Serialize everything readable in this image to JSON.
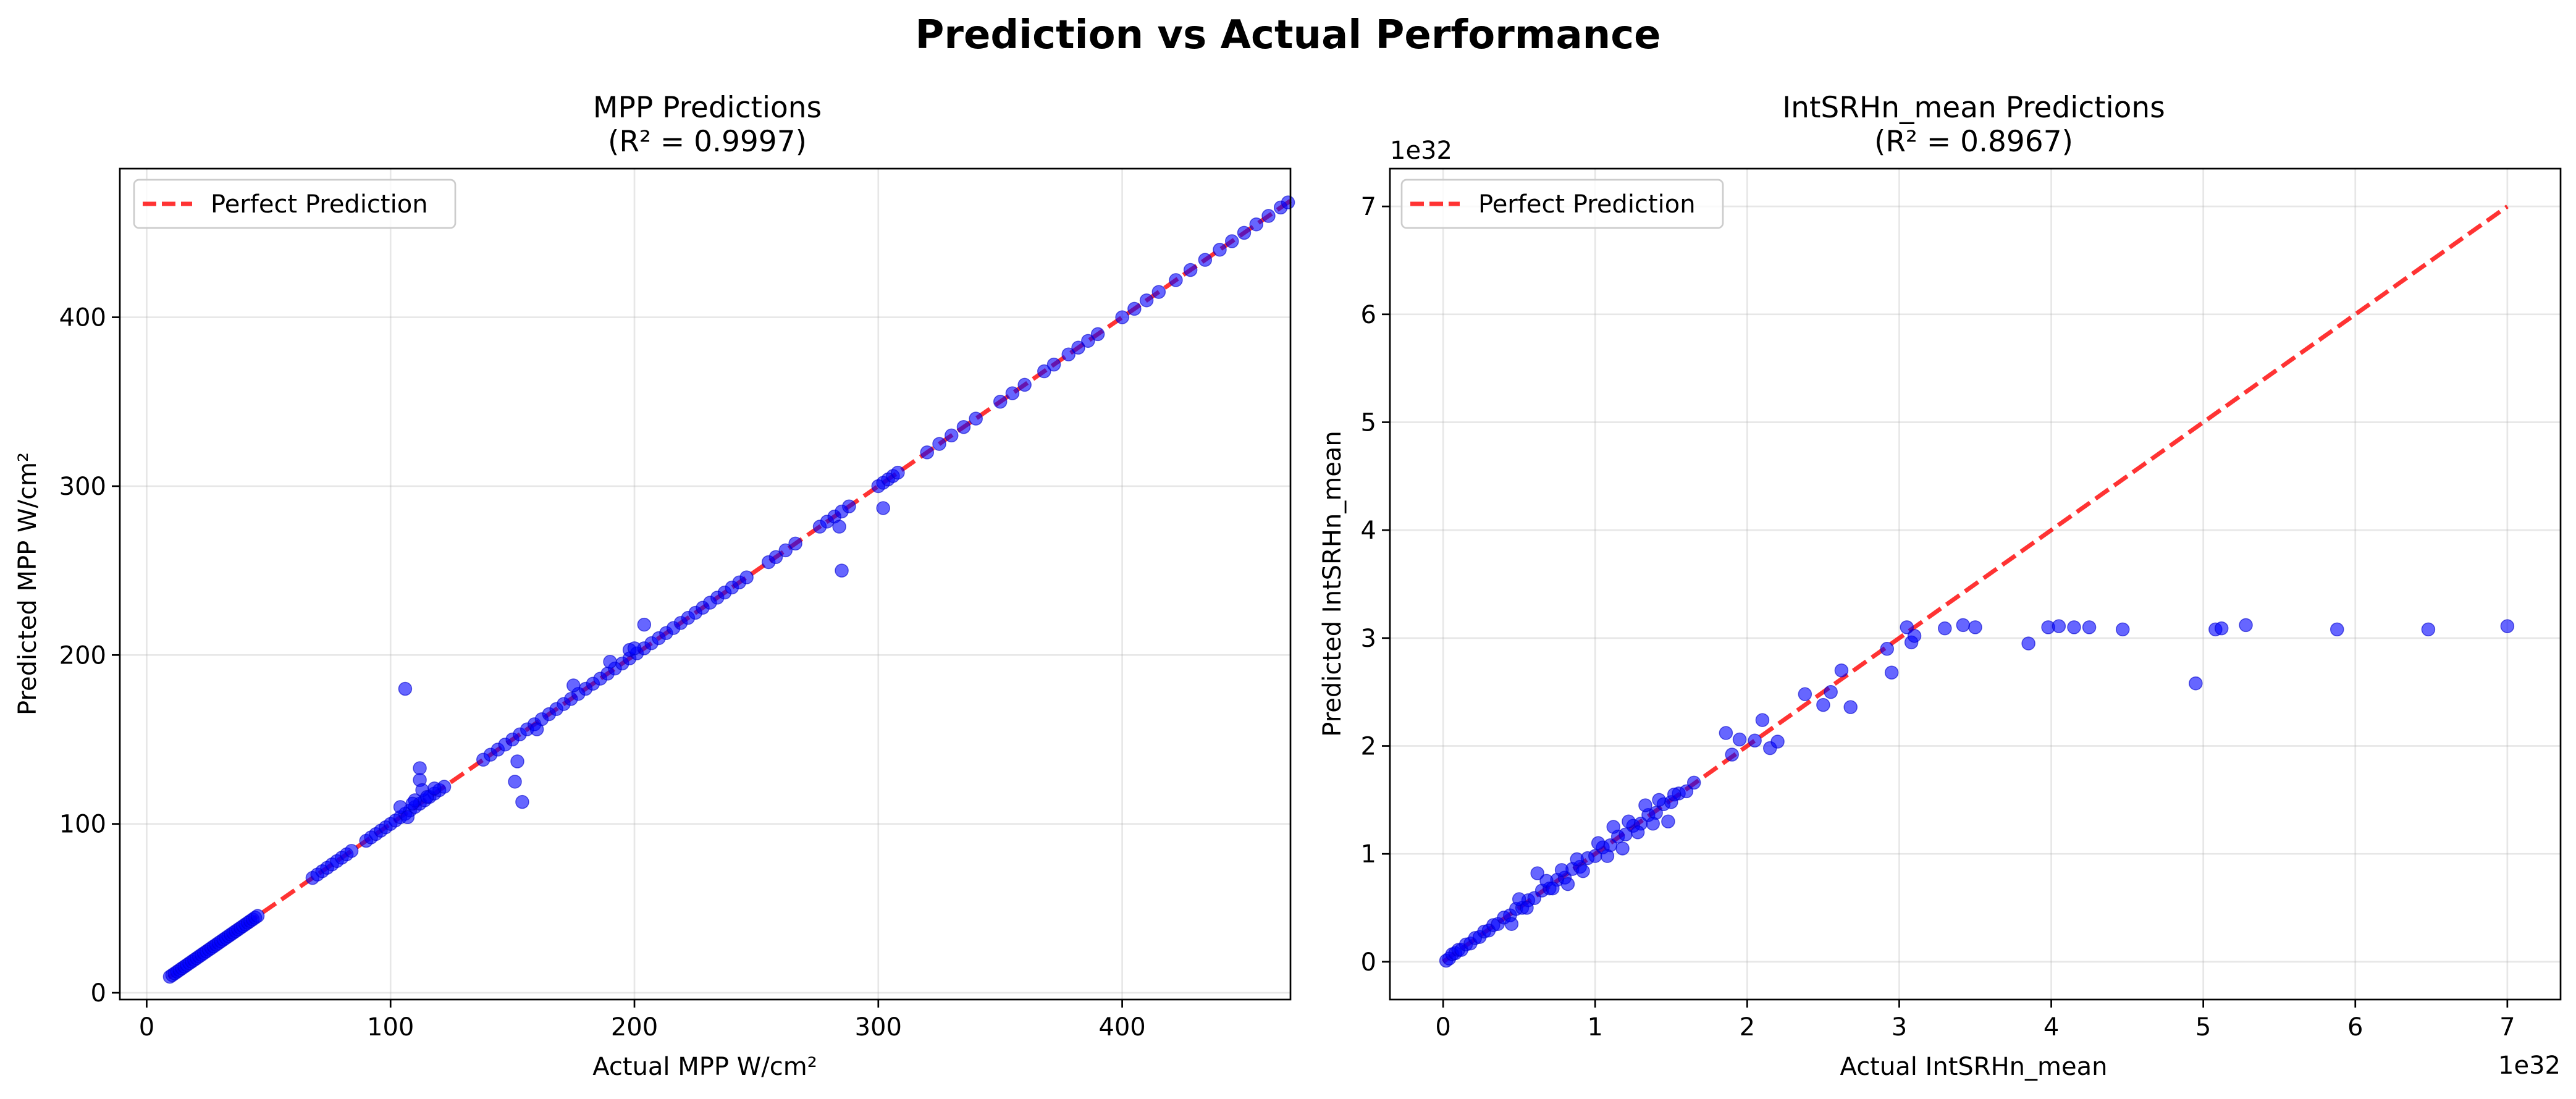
{
  "figure": {
    "title": "Prediction vs Actual Performance"
  },
  "colors": {
    "point_fill": "#0000ff",
    "point_edge": "#0000cc",
    "perfect_line": "#ff0000",
    "grid": "#b0b0b0",
    "legend_edge": "#cccccc"
  },
  "chart_data": [
    {
      "type": "scatter",
      "title": "MPP Predictions\n(R² = 0.9997)",
      "xlabel": "Actual MPP W/cm²",
      "ylabel": "Predicted MPP W/cm²",
      "xlim": [
        -11,
        469
      ],
      "ylim": [
        -4,
        488
      ],
      "xticks": [
        0,
        100,
        200,
        300,
        400
      ],
      "xtick_labels": [
        "0",
        "100",
        "200",
        "300",
        "400"
      ],
      "yticks": [
        0,
        100,
        200,
        300,
        400
      ],
      "ytick_labels": [
        "0",
        "100",
        "200",
        "300",
        "400"
      ],
      "offset_x": "",
      "offset_y": "",
      "grid": true,
      "legend": {
        "position": "top-left",
        "entries": [
          "Perfect Prediction"
        ]
      },
      "reference_line": {
        "x": [
          9,
          469
        ],
        "y": [
          9,
          469
        ]
      },
      "series": [
        {
          "name": "",
          "x": [
            9.5,
            10.5,
            11.5,
            12.5,
            13.5,
            14.5,
            15.5,
            16.5,
            17.5,
            18.5,
            19.5,
            20.5,
            21.5,
            22.5,
            23.5,
            24.5,
            25.5,
            26.5,
            27.5,
            28.5,
            29.5,
            30.5,
            31.5,
            32.5,
            33.5,
            34.5,
            35.5,
            36.5,
            37.5,
            38.5,
            39.5,
            40.5,
            41.5,
            42.5,
            43.5,
            44.5,
            45.5,
            68,
            70,
            72,
            74,
            76,
            78,
            80,
            82,
            84,
            90,
            92,
            94,
            96,
            98,
            100,
            102,
            104,
            106,
            108,
            110,
            112,
            114,
            116,
            118,
            120,
            122,
            138,
            141,
            144,
            147,
            150,
            153,
            156,
            159,
            162,
            165,
            168,
            171,
            174,
            177,
            180,
            183,
            186,
            189,
            192,
            195,
            198,
            201,
            204,
            207,
            210,
            213,
            216,
            219,
            222,
            225,
            228,
            231,
            234,
            237,
            240,
            243,
            246,
            255,
            258,
            262,
            266,
            276,
            279,
            282,
            285,
            288,
            300,
            302,
            304,
            306,
            308,
            320,
            325,
            330,
            335,
            340,
            350,
            355,
            360,
            368,
            372,
            378,
            382,
            386,
            390,
            400,
            405,
            410,
            415,
            422,
            428,
            434,
            440,
            445,
            450,
            455,
            460,
            465,
            468,
            106,
            112,
            112,
            113,
            110,
            104,
            107,
            109,
            115,
            118,
            152,
            151,
            154,
            285,
            284,
            302,
            190,
            198,
            200,
            204,
            175,
            160
          ],
          "y": [
            9.5,
            10.5,
            11.5,
            12.5,
            13.5,
            14.5,
            15.5,
            16.5,
            17.5,
            18.5,
            19.5,
            20.5,
            21.5,
            22.5,
            23.5,
            24.5,
            25.5,
            26.5,
            27.5,
            28.5,
            29.5,
            30.5,
            31.5,
            32.5,
            33.5,
            34.5,
            35.5,
            36.5,
            37.5,
            38.5,
            39.5,
            40.5,
            41.5,
            42.5,
            43.5,
            44.5,
            45.5,
            68,
            70,
            72,
            74,
            76,
            78,
            80,
            82,
            84,
            90,
            92,
            94,
            96,
            98,
            100,
            102,
            104,
            106,
            108,
            110,
            112,
            114,
            116,
            118,
            120,
            122,
            138,
            141,
            144,
            147,
            150,
            153,
            156,
            159,
            162,
            165,
            168,
            171,
            174,
            177,
            180,
            183,
            186,
            189,
            192,
            195,
            198,
            201,
            204,
            207,
            210,
            213,
            216,
            219,
            222,
            225,
            228,
            231,
            234,
            237,
            240,
            243,
            246,
            255,
            258,
            262,
            266,
            276,
            279,
            282,
            285,
            288,
            300,
            302,
            304,
            306,
            308,
            320,
            325,
            330,
            335,
            340,
            350,
            355,
            360,
            368,
            372,
            378,
            382,
            386,
            390,
            400,
            405,
            410,
            415,
            422,
            428,
            434,
            440,
            445,
            450,
            455,
            460,
            465,
            468,
            180,
            133,
            126,
            120,
            114,
            110,
            104,
            112,
            116,
            121,
            137,
            125,
            113,
            250,
            276,
            287,
            196,
            203,
            204,
            218,
            182,
            156
          ]
        }
      ]
    },
    {
      "type": "scatter",
      "title": "IntSRHn_mean Predictions\n(R² = 0.8967)",
      "xlabel": "Actual IntSRHn_mean",
      "ylabel": "Predicted IntSRHn_mean",
      "xlim": [
        -0.35,
        7.35
      ],
      "ylim": [
        -0.35,
        7.35
      ],
      "xticks": [
        0,
        1,
        2,
        3,
        4,
        5,
        6,
        7
      ],
      "xtick_labels": [
        "0",
        "1",
        "2",
        "3",
        "4",
        "5",
        "6",
        "7"
      ],
      "yticks": [
        0,
        1,
        2,
        3,
        4,
        5,
        6,
        7
      ],
      "ytick_labels": [
        "0",
        "1",
        "2",
        "3",
        "4",
        "5",
        "6",
        "7"
      ],
      "offset_x": "1e32",
      "offset_y": "1e32",
      "grid": true,
      "legend": {
        "position": "top-left",
        "entries": [
          "Perfect Prediction"
        ]
      },
      "reference_line": {
        "x": [
          0,
          7
        ],
        "y": [
          0,
          7
        ]
      },
      "series": [
        {
          "name": "",
          "x": [
            0.02,
            0.04,
            0.06,
            0.08,
            0.1,
            0.12,
            0.15,
            0.18,
            0.21,
            0.24,
            0.27,
            0.3,
            0.33,
            0.36,
            0.4,
            0.44,
            0.48,
            0.52,
            0.56,
            0.6,
            0.65,
            0.7,
            0.75,
            0.8,
            0.85,
            0.9,
            0.95,
            1.0,
            1.05,
            1.1,
            1.15,
            1.2,
            1.25,
            1.3,
            1.35,
            1.4,
            1.45,
            1.5,
            1.55,
            1.6,
            1.65,
            0.45,
            0.5,
            0.55,
            0.62,
            0.68,
            0.72,
            0.78,
            0.82,
            0.88,
            0.92,
            1.02,
            1.08,
            1.12,
            1.18,
            1.22,
            1.28,
            1.33,
            1.38,
            1.42,
            1.48,
            1.52,
            1.86,
            1.9,
            1.95,
            2.05,
            2.1,
            2.15,
            2.2,
            2.38,
            2.5,
            2.55,
            2.62,
            2.68,
            2.92,
            2.95,
            3.05,
            3.08,
            3.1,
            3.3,
            3.42,
            3.5,
            3.85,
            3.98,
            4.05,
            4.15,
            4.25,
            4.47,
            4.95,
            5.08,
            5.12,
            5.28,
            5.88,
            6.48,
            7.0
          ],
          "y": [
            0.01,
            0.03,
            0.07,
            0.08,
            0.11,
            0.11,
            0.16,
            0.17,
            0.22,
            0.23,
            0.28,
            0.29,
            0.34,
            0.35,
            0.41,
            0.43,
            0.49,
            0.5,
            0.57,
            0.59,
            0.66,
            0.68,
            0.76,
            0.78,
            0.86,
            0.88,
            0.96,
            0.98,
            1.06,
            1.08,
            1.16,
            1.18,
            1.26,
            1.28,
            1.36,
            1.38,
            1.46,
            1.48,
            1.56,
            1.58,
            1.66,
            0.35,
            0.58,
            0.5,
            0.82,
            0.75,
            0.68,
            0.85,
            0.72,
            0.95,
            0.84,
            1.1,
            0.98,
            1.25,
            1.05,
            1.3,
            1.2,
            1.45,
            1.28,
            1.5,
            1.3,
            1.55,
            2.12,
            1.92,
            2.06,
            2.05,
            2.24,
            1.98,
            2.04,
            2.48,
            2.38,
            2.5,
            2.7,
            2.36,
            2.9,
            2.68,
            3.1,
            2.96,
            3.02,
            3.09,
            3.12,
            3.1,
            2.95,
            3.1,
            3.11,
            3.1,
            3.1,
            3.08,
            2.58,
            3.08,
            3.09,
            3.12,
            3.08,
            3.08,
            3.11
          ]
        }
      ]
    }
  ]
}
